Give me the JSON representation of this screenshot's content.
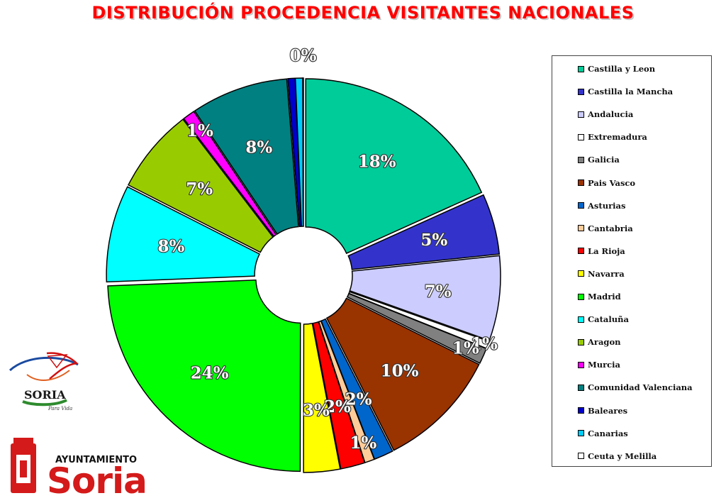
{
  "page": {
    "title": "DISTRIBUCIÓN PROCEDENCIA VISITANTES NACIONALES",
    "brand": {
      "logo_text": "SORIA",
      "tagline": "Para Vida",
      "ayuntamiento": "AYUNTAMIENTO",
      "city": "Soria"
    }
  },
  "chart_data": {
    "type": "pie",
    "title": "DISTRIBUCIÓN PROCEDENCIA VISITANTES NACIONALES",
    "legend_position": "right",
    "series": [
      {
        "name": "Castilla y Leon",
        "value": 18,
        "label": "18%",
        "color": "#00cc99",
        "label_color": "#ffffff"
      },
      {
        "name": "Castilla la Mancha",
        "value": 5,
        "label": "5%",
        "color": "#3333cc",
        "label_color": "#ffffff"
      },
      {
        "name": "Andalucia",
        "value": 7,
        "label": "7%",
        "color": "#ccccff",
        "label_color": "#ffffff"
      },
      {
        "name": "Extremadura",
        "value": 0.6,
        "label": "1%",
        "color": "#ffffff",
        "label_color": "#ffffff"
      },
      {
        "name": "Galicia",
        "value": 1.3,
        "label": "1%",
        "color": "#808080",
        "label_color": "#ffffff"
      },
      {
        "name": "Pais Vasco",
        "value": 10,
        "label": "10%",
        "color": "#993300",
        "label_color": "#ffffff"
      },
      {
        "name": "Asturias",
        "value": 1.6,
        "label": "2%",
        "color": "#0066cc",
        "label_color": "#ffffff"
      },
      {
        "name": "Cantabria",
        "value": 0.8,
        "label": "1%",
        "color": "#ffcc99",
        "label_color": "#ffffff"
      },
      {
        "name": "La Rioja",
        "value": 2,
        "label": "2%",
        "color": "#ff0000",
        "label_color": "#ffffff"
      },
      {
        "name": "Navarra",
        "value": 3,
        "label": "3%",
        "color": "#ffff00",
        "label_color": "#ffffff"
      },
      {
        "name": "Madrid",
        "value": 24,
        "label": "24%",
        "color": "#00ff00",
        "label_color": "#ffffff"
      },
      {
        "name": "Cataluña",
        "value": 8,
        "label": "8%",
        "color": "#00ffff",
        "label_color": "#ffffff"
      },
      {
        "name": "Aragon",
        "value": 7,
        "label": "7%",
        "color": "#99cc00",
        "label_color": "#ffffff"
      },
      {
        "name": "Murcia",
        "value": 1,
        "label": "1%",
        "color": "#ff00ff",
        "label_color": "#ffffff"
      },
      {
        "name": "Comunidad Valenciana",
        "value": 8,
        "label": "8%",
        "color": "#008080",
        "label_color": "#ffffff"
      },
      {
        "name": "Baleares",
        "value": 0.6,
        "label": "",
        "color": "#0000cc",
        "label_color": "#ffffff"
      },
      {
        "name": "Canarias",
        "value": 0.6,
        "label": "",
        "color": "#00ccff",
        "label_color": "#ffffff"
      },
      {
        "name": "Ceuta y Melilla",
        "value": 0.05,
        "label": "0%",
        "color": "#ffffff",
        "label_color": "#ffffff"
      }
    ]
  }
}
